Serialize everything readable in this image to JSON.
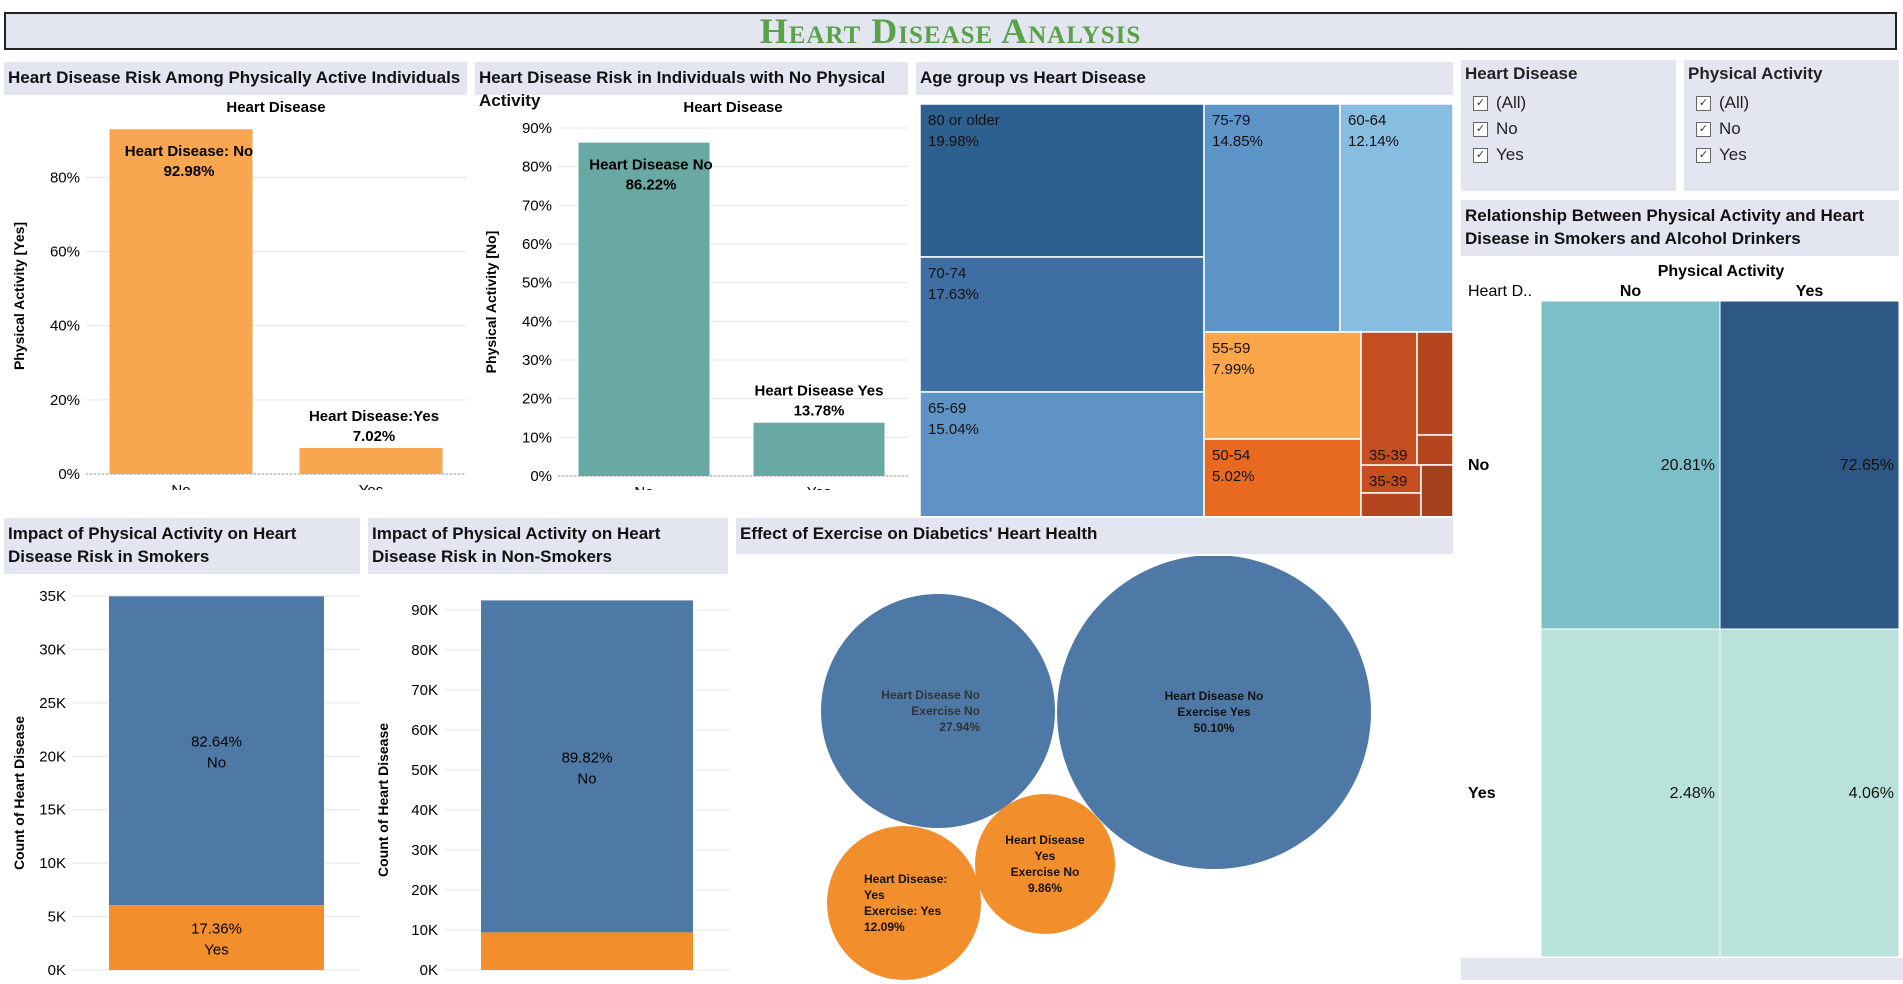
{
  "dashboard_title": "Heart Disease Analysis",
  "colors": {
    "orange_light": "#f8a64f",
    "orange": "#f28e2b",
    "teal": "#69a9a3",
    "blue": "#4e79a7",
    "header_bg": "#e3e6f0",
    "title_green": "#5aa24a"
  },
  "filters": [
    {
      "title": "Heart Disease",
      "items": [
        {
          "label": "(All)",
          "checked": true
        },
        {
          "label": "No",
          "checked": true
        },
        {
          "label": "Yes",
          "checked": true
        }
      ]
    },
    {
      "title": "Physical Activity",
      "items": [
        {
          "label": "(All)",
          "checked": true
        },
        {
          "label": "No",
          "checked": true
        },
        {
          "label": "Yes",
          "checked": true
        }
      ]
    }
  ],
  "chart_data": [
    {
      "id": "active",
      "type": "bar",
      "title": "Heart Disease Risk Among Physically Active Individuals",
      "header": "Heart Disease",
      "ylabel": "Physical Activity [Yes]",
      "categories": [
        "No",
        "Yes"
      ],
      "values": [
        92.98,
        7.02
      ],
      "labels": [
        [
          "Heart Disease: No",
          "92.98%"
        ],
        [
          "Heart Disease:Yes",
          "7.02%"
        ]
      ],
      "yticks": [
        "0%",
        "20%",
        "40%",
        "60%",
        "80%"
      ],
      "ylim": [
        0,
        96
      ]
    },
    {
      "id": "inactive",
      "type": "bar",
      "title": "Heart Disease Risk in Individuals with No Physical Activity",
      "header": "Heart Disease",
      "ylabel": "Physical Activity [No]",
      "categories": [
        "No",
        "Yes"
      ],
      "values": [
        86.22,
        13.78
      ],
      "labels": [
        [
          "Heart Disease No",
          "86.22%"
        ],
        [
          "Heart Disease Yes",
          "13.78%"
        ]
      ],
      "yticks": [
        "0%",
        "10%",
        "20%",
        "30%",
        "40%",
        "50%",
        "60%",
        "70%",
        "80%",
        "90%"
      ],
      "ylim": [
        0,
        90
      ]
    },
    {
      "id": "age",
      "type": "treemap",
      "title": "Age group vs Heart Disease",
      "items": [
        {
          "label": "80 or older",
          "value": "19.98%"
        },
        {
          "label": "70-74",
          "value": "17.63%"
        },
        {
          "label": "65-69",
          "value": "15.04%"
        },
        {
          "label": "75-79",
          "value": "14.85%"
        },
        {
          "label": "60-64",
          "value": "12.14%"
        },
        {
          "label": "55-59",
          "value": "7.99%"
        },
        {
          "label": "50-54",
          "value": "5.02%"
        },
        {
          "label": "35-39",
          "value": ""
        }
      ]
    },
    {
      "id": "smokers",
      "type": "bar",
      "title": "Impact of Physical Activity on Heart Disease Risk in Smokers",
      "ylabel": "Count of Heart Disease",
      "yticks": [
        "0K",
        "5K",
        "10K",
        "15K",
        "20K",
        "25K",
        "30K",
        "35K"
      ],
      "ylim": [
        0,
        35000
      ],
      "series": [
        {
          "name": "No",
          "value": 28900,
          "label": [
            "82.64%",
            "No"
          ]
        },
        {
          "name": "Yes",
          "value": 6070,
          "label": [
            "17.36%",
            "Yes"
          ]
        }
      ]
    },
    {
      "id": "nonsmokers",
      "type": "bar",
      "title": "Impact of Physical Activity on Heart Disease Risk in Non-Smokers",
      "ylabel": "Count of Heart Disease",
      "yticks": [
        "0K",
        "10K",
        "20K",
        "30K",
        "40K",
        "50K",
        "60K",
        "70K",
        "80K",
        "90K"
      ],
      "ylim": [
        0,
        90000
      ],
      "series": [
        {
          "name": "No",
          "value": 83000,
          "label": [
            "89.82%",
            "No"
          ]
        },
        {
          "name": "Yes",
          "value": 9400,
          "label": [
            "",
            ""
          ]
        }
      ]
    },
    {
      "id": "diabetics",
      "type": "bubble",
      "title": "Effect of Exercise on Diabetics' Heart Health",
      "bubbles": [
        {
          "lines": [
            "Heart Disease No",
            "Exercise  No",
            "27.94%"
          ],
          "value": 27.94
        },
        {
          "lines": [
            "Heart Disease No",
            "Exercise Yes",
            "50.10%"
          ],
          "value": 50.1
        },
        {
          "lines": [
            "Heart Disease:",
            "Yes",
            "Exercise: Yes",
            "12.09%"
          ],
          "value": 12.09
        },
        {
          "lines": [
            "Heart Disease",
            "Yes",
            "Exercise  No",
            "9.86%"
          ],
          "value": 9.86
        }
      ]
    },
    {
      "id": "smoke_alcohol",
      "type": "heatmap",
      "title": "Relationship Between Physical Activity and Heart Disease in Smokers and Alcohol Drinkers",
      "col_header": "Physical Activity",
      "row_header": "Heart D..",
      "columns": [
        "No",
        "Yes"
      ],
      "rows": [
        "No",
        "Yes"
      ],
      "values": [
        [
          "20.81%",
          "72.65%"
        ],
        [
          "2.48%",
          "4.06%"
        ]
      ]
    }
  ]
}
